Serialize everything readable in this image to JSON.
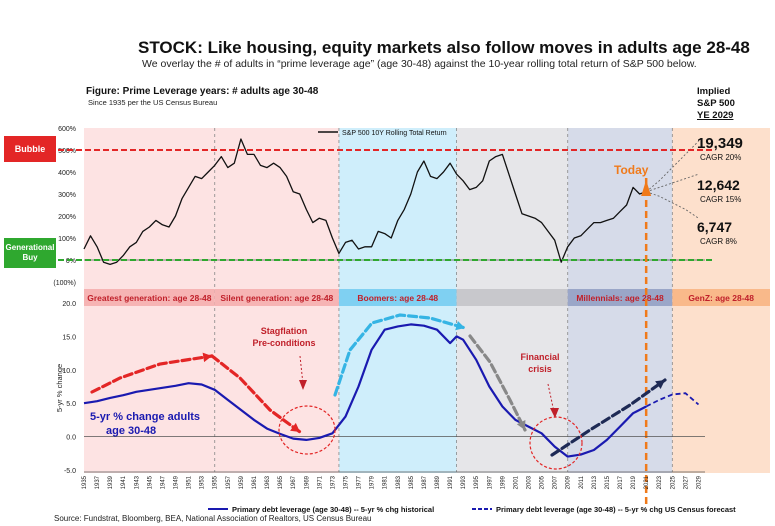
{
  "header": {
    "title": "STOCK: Like housing, equity markets also follow moves in adults age 28-48",
    "subtitle": "We overlay the # of adults in “prime leverage age” (age 30-48) against the 10-year rolling total return of S&P 500 below."
  },
  "figure": {
    "title": "Figure: Prime Leverage years:  # adults age 30-48",
    "subtitle": "Since 1935 per the US Census Bureau",
    "implied": {
      "line1": "Implied",
      "line2": "S&P 500",
      "line3": "YE 2029"
    },
    "source": "Source: Fundstrat, Bloomberg, BEA, National Association of Realtors, US Census Bureau"
  },
  "markers": {
    "bubble": "Bubble",
    "generational_buy": "Generational Buy",
    "today": "Today",
    "stagflation": [
      "Stagflation",
      "Pre-conditions"
    ],
    "financial_crisis": [
      "Financial",
      "crisis"
    ],
    "adults_label": [
      "5-yr % change adults",
      "age 30-48"
    ]
  },
  "projections": [
    {
      "value": "19,349",
      "cagr": "CAGR 20%"
    },
    {
      "value": "12,642",
      "cagr": "CAGR 15%"
    },
    {
      "value": "6,747",
      "cagr": "CAGR 8%"
    }
  ],
  "generations": [
    {
      "label": "Greatest generation: age 28-48",
      "start": 1935,
      "end": 1955,
      "color": "#f6b4b4",
      "bg": "#fde3e3"
    },
    {
      "label": "Silent generation: age 28-48",
      "start": 1955,
      "end": 1974,
      "color": "#f6b4b4",
      "bg": "#fde3e3"
    },
    {
      "label": "Boomers: age 28-48",
      "start": 1974,
      "end": 1992,
      "color": "#7fd0f2",
      "bg": "#cfeefb"
    },
    {
      "label": "",
      "start": 1992,
      "end": 2009,
      "color": "#c8c8cc",
      "bg": "#e6e6e9"
    },
    {
      "label": "Millennials: age 28-48",
      "start": 2009,
      "end": 2025,
      "color": "#9aa6c8",
      "bg": "#d6dbe9"
    },
    {
      "label": "GenZ: age 28-48",
      "start": 2025,
      "end": 2031,
      "color": "#f9b98a",
      "bg": "#fde0cc"
    }
  ],
  "chart_data": [
    {
      "type": "line",
      "title": "",
      "legend": [
        "S&P 500 10Y Rolling Total Return"
      ],
      "ylim": [
        -100,
        600
      ],
      "yticks": [
        "600%",
        "500%",
        "400%",
        "300%",
        "200%",
        "100%",
        "0%",
        "(100%)"
      ],
      "ytick_values": [
        600,
        500,
        400,
        300,
        200,
        100,
        0,
        -100
      ],
      "series": [
        {
          "name": "S&P 500 10Y Rolling Total Return",
          "x": [
            1935,
            1936,
            1937,
            1938,
            1939,
            1940,
            1941,
            1942,
            1943,
            1944,
            1945,
            1946,
            1947,
            1948,
            1949,
            1950,
            1951,
            1952,
            1953,
            1954,
            1955,
            1956,
            1957,
            1958,
            1959,
            1960,
            1961,
            1962,
            1963,
            1964,
            1965,
            1966,
            1967,
            1968,
            1969,
            1970,
            1971,
            1972,
            1973,
            1974,
            1975,
            1976,
            1977,
            1978,
            1979,
            1980,
            1981,
            1982,
            1983,
            1984,
            1985,
            1986,
            1987,
            1988,
            1989,
            1990,
            1991,
            1992,
            1993,
            1994,
            1995,
            1996,
            1997,
            1998,
            1999,
            2000,
            2001,
            2002,
            2003,
            2004,
            2005,
            2006,
            2007,
            2008,
            2009,
            2010,
            2011,
            2012,
            2013,
            2014,
            2015,
            2016,
            2017,
            2018,
            2019,
            2020,
            2021
          ],
          "values": [
            50,
            110,
            60,
            -10,
            -20,
            -10,
            20,
            60,
            80,
            130,
            150,
            180,
            160,
            150,
            200,
            280,
            330,
            380,
            370,
            400,
            430,
            470,
            420,
            440,
            550,
            480,
            480,
            430,
            420,
            440,
            420,
            380,
            310,
            300,
            230,
            170,
            190,
            180,
            100,
            30,
            80,
            90,
            50,
            60,
            60,
            130,
            120,
            100,
            180,
            230,
            300,
            400,
            450,
            380,
            370,
            400,
            440,
            390,
            360,
            320,
            330,
            360,
            450,
            470,
            480,
            390,
            300,
            210,
            200,
            190,
            170,
            130,
            90,
            -10,
            60,
            100,
            110,
            140,
            170,
            170,
            180,
            190,
            220,
            250,
            330,
            300,
            310
          ]
        }
      ],
      "projection_series": [
        {
          "name": "19,349 CAGR 20%",
          "x": [
            2021,
            2023,
            2025,
            2027,
            2029
          ],
          "values": [
            310,
            360,
            420,
            480,
            540
          ]
        },
        {
          "name": "12,642 CAGR 15%",
          "x": [
            2021,
            2023,
            2025,
            2027,
            2029
          ],
          "values": [
            310,
            330,
            350,
            370,
            390
          ]
        },
        {
          "name": "6,747 CAGR 8%",
          "x": [
            2021,
            2023,
            2025,
            2027,
            2029
          ],
          "values": [
            310,
            290,
            260,
            230,
            190
          ]
        }
      ],
      "reference_lines": {
        "bubble": 500,
        "generational_buy": 0
      }
    },
    {
      "type": "line",
      "ylabel": "5-yr % change",
      "ylim": [
        -5,
        20
      ],
      "yticks": [
        "20.0",
        "15.0",
        "10.0",
        "5.0",
        "0.0",
        "-5.0"
      ],
      "ytick_values": [
        20,
        15,
        10,
        5,
        0,
        -5
      ],
      "xticks": [
        "1935",
        "1937",
        "1939",
        "1941",
        "1943",
        "1945",
        "1947",
        "1949",
        "1951",
        "1953",
        "1955",
        "1957",
        "1959",
        "1961",
        "1963",
        "1965",
        "1967",
        "1969",
        "1971",
        "1973",
        "1975",
        "1977",
        "1979",
        "1981",
        "1983",
        "1985",
        "1987",
        "1989",
        "1991",
        "1993",
        "1995",
        "1997",
        "1999",
        "2001",
        "2003",
        "2005",
        "2007",
        "2009",
        "2011",
        "2013",
        "2015",
        "2017",
        "2019",
        "2021",
        "2023",
        "2025",
        "2027",
        "2029"
      ],
      "legend": [
        "Primary debt leverage (age 30-48) -- 5-yr % chg historical",
        "Primary debt leverage (age 30-48) -- 5-yr % chg US Census forecast"
      ],
      "series": [
        {
          "name": "Primary debt leverage (age 30-48) -- 5-yr % chg historical",
          "x": [
            1935,
            1937,
            1939,
            1941,
            1943,
            1945,
            1947,
            1949,
            1951,
            1953,
            1955,
            1957,
            1959,
            1961,
            1963,
            1965,
            1967,
            1969,
            1971,
            1973,
            1975,
            1977,
            1979,
            1981,
            1983,
            1985,
            1987,
            1989,
            1991,
            1992,
            1993,
            1995,
            1997,
            1999,
            2001,
            2003,
            2005,
            2007,
            2009,
            2011,
            2013,
            2015,
            2017,
            2019,
            2021
          ],
          "values": [
            5.0,
            5.3,
            5.8,
            6.2,
            6.7,
            7.0,
            7.3,
            7.6,
            8.0,
            7.8,
            7.0,
            5.5,
            4.0,
            2.5,
            1.2,
            0.4,
            -0.3,
            -0.5,
            -0.2,
            0.5,
            3.0,
            7.5,
            13.0,
            16.0,
            16.5,
            16.8,
            16.6,
            16.0,
            14.0,
            15.0,
            14.5,
            11.5,
            7.5,
            4.5,
            2.5,
            1.5,
            0.5,
            -1.5,
            -3.0,
            -2.7,
            -2.0,
            -0.5,
            1.5,
            3.5,
            4.5
          ]
        },
        {
          "name": "Primary debt leverage (age 30-48) -- 5-yr % chg US Census forecast",
          "x": [
            2021,
            2023,
            2025,
            2027,
            2029
          ],
          "values": [
            4.5,
            5.5,
            6.3,
            6.5,
            4.8
          ]
        }
      ]
    }
  ]
}
